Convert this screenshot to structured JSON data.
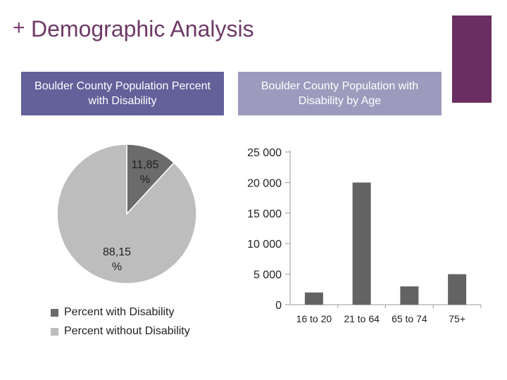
{
  "page": {
    "title_plus": "+",
    "title": "Demographic Analysis",
    "accent_color": "#6a2e62"
  },
  "boxes": {
    "left": "Boulder County Population Percent with Disability",
    "right": "Boulder County Population with Disability by Age"
  },
  "chart_data": [
    {
      "type": "pie",
      "title": "Boulder County Population Percent with Disability",
      "categories": [
        "Percent with Disability",
        "Percent without Disability"
      ],
      "values": [
        11.85,
        88.15
      ],
      "labels": [
        "11,85 %",
        "88,15 %"
      ],
      "colors": [
        "#6b6b6b",
        "#bdbdbd"
      ],
      "legend": "bottom"
    },
    {
      "type": "bar",
      "title": "Boulder County Population with Disability by Age",
      "categories": [
        "16 to 20",
        "21 to 64",
        "65 to 74",
        "75+"
      ],
      "values": [
        2000,
        20000,
        3000,
        5000
      ],
      "ylim": [
        0,
        25000
      ],
      "yticks": [
        0,
        5000,
        10000,
        15000,
        20000,
        25000
      ],
      "ytick_labels": [
        "0",
        "5 000",
        "10 000",
        "15 000",
        "20 000",
        "25 000"
      ],
      "bar_color": "#636363",
      "xlabel": "",
      "ylabel": ""
    }
  ]
}
